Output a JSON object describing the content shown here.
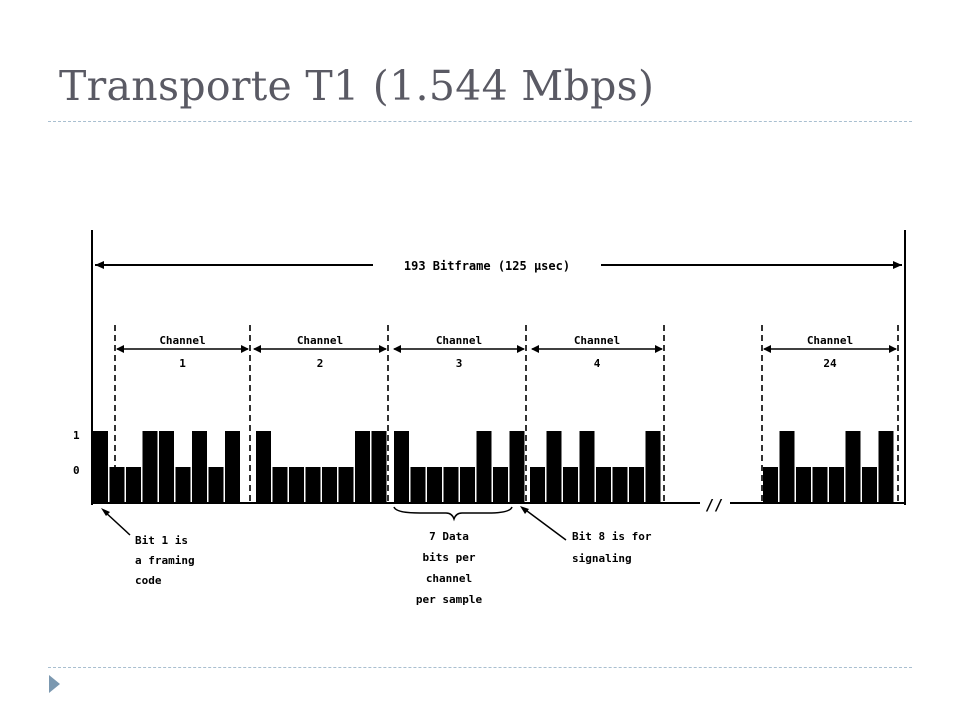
{
  "title": "Transporte T1 (1.544 Mbps)",
  "diagram": {
    "frame_label": "193 Bitframe (125 µsec)",
    "channel_word": "Channel",
    "channels": [
      {
        "number": "1",
        "bits": [
          1,
          0,
          0,
          1,
          1,
          0,
          1,
          0,
          1
        ]
      },
      {
        "number": "2",
        "bits": [
          1,
          0,
          0,
          0,
          0,
          0,
          1,
          1
        ]
      },
      {
        "number": "3",
        "bits": [
          1,
          0,
          0,
          0,
          0,
          1,
          0,
          1
        ]
      },
      {
        "number": "4",
        "bits": [
          0,
          1,
          0,
          1,
          0,
          0,
          0,
          1
        ]
      },
      {
        "number": "24",
        "bits": [
          0,
          1,
          0,
          0,
          0,
          1,
          0,
          1
        ]
      }
    ],
    "axis_labels": {
      "high": "1",
      "low": "0"
    },
    "gap_marker": "//",
    "annotations": {
      "framing_bit": [
        "Bit 1 is",
        "a framing",
        "code"
      ],
      "data_bits": [
        "7 Data",
        "bits per",
        "channel",
        "per sample"
      ],
      "signaling_bit": [
        "Bit 8 is for",
        "signaling"
      ]
    }
  },
  "colors": {
    "title": "#5a5a64",
    "rule": "#a9bfd0",
    "nav_arrow": "#7b98b0",
    "ink": "#000000"
  },
  "icons": {
    "nav": "triangle-right-icon"
  }
}
